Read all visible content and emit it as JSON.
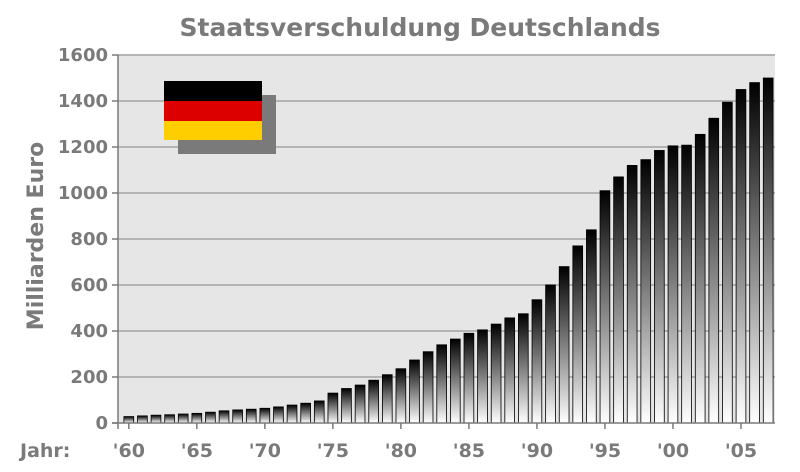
{
  "chart_data": {
    "type": "bar",
    "title": "Staatsverschuldung Deutschlands",
    "ylabel": "Milliarden Euro",
    "xlabel_prefix": "Jahr:",
    "ylim": [
      0,
      1600
    ],
    "yticks": [
      0,
      200,
      400,
      600,
      800,
      1000,
      1200,
      1400,
      1600
    ],
    "xticks": [
      {
        "year": 1960,
        "label": "'60"
      },
      {
        "year": 1965,
        "label": "'65"
      },
      {
        "year": 1970,
        "label": "'70"
      },
      {
        "year": 1975,
        "label": "'75"
      },
      {
        "year": 1980,
        "label": "'80"
      },
      {
        "year": 1985,
        "label": "'85"
      },
      {
        "year": 1990,
        "label": "'90"
      },
      {
        "year": 1995,
        "label": "'95"
      },
      {
        "year": 2000,
        "label": "'00"
      },
      {
        "year": 2005,
        "label": "'05"
      }
    ],
    "grid": true,
    "legend": "none",
    "flag_colors": [
      "#000000",
      "#dd0000",
      "#ffce00"
    ],
    "bar_gradient": [
      "#000000",
      "#ffffff"
    ],
    "categories": [
      1960,
      1961,
      1962,
      1963,
      1964,
      1965,
      1966,
      1967,
      1968,
      1969,
      1970,
      1971,
      1972,
      1973,
      1974,
      1975,
      1976,
      1977,
      1978,
      1979,
      1980,
      1981,
      1982,
      1983,
      1984,
      1985,
      1986,
      1987,
      1988,
      1989,
      1990,
      1991,
      1992,
      1993,
      1994,
      1995,
      1996,
      1997,
      1998,
      1999,
      2000,
      2001,
      2002,
      2003,
      2004,
      2005,
      2006,
      2007
    ],
    "values": [
      28,
      31,
      34,
      36,
      39,
      42,
      47,
      53,
      57,
      60,
      64,
      70,
      78,
      86,
      96,
      130,
      150,
      165,
      186,
      210,
      236,
      274,
      310,
      340,
      365,
      390,
      405,
      430,
      457,
      475,
      536,
      600,
      680,
      770,
      840,
      1010,
      1070,
      1120,
      1145,
      1185,
      1205,
      1208,
      1255,
      1325,
      1395,
      1450,
      1480,
      1500
    ]
  }
}
